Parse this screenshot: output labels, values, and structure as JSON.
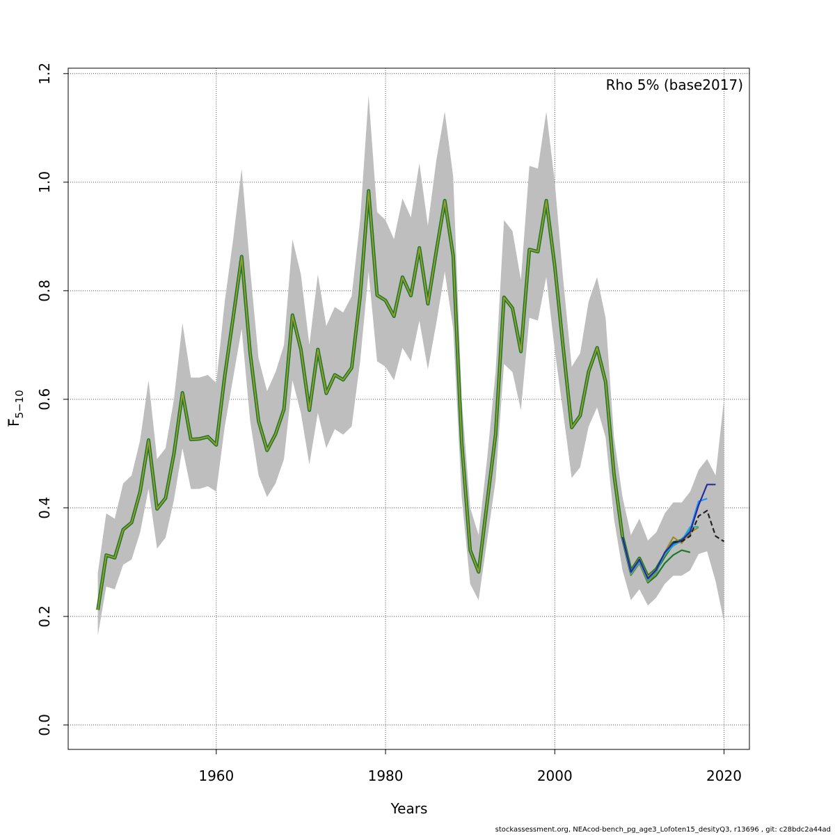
{
  "chart_data": {
    "type": "line",
    "xlabel": "Years",
    "ylabel_main": "F",
    "ylabel_sub": "5−10",
    "annotation": "Rho 5% (base2017)",
    "xlim": [
      1942.5,
      2023
    ],
    "ylim": [
      -0.045,
      1.21
    ],
    "x_ticks": [
      1960,
      1980,
      2000,
      2020
    ],
    "y_ticks": [
      0.0,
      0.2,
      0.4,
      0.6,
      0.8,
      1.0,
      1.2
    ],
    "x_tick_labels": [
      "1960",
      "1980",
      "2000",
      "2020"
    ],
    "y_tick_labels": [
      "0.0",
      "0.2",
      "0.4",
      "0.6",
      "0.8",
      "1.0",
      "1.2"
    ],
    "grid": true,
    "band": {
      "color": "#bebebe",
      "x": [
        1946,
        1947,
        1948,
        1949,
        1950,
        1951,
        1952,
        1953,
        1954,
        1955,
        1956,
        1957,
        1958,
        1959,
        1960,
        1961,
        1962,
        1963,
        1964,
        1965,
        1966,
        1967,
        1968,
        1969,
        1970,
        1971,
        1972,
        1973,
        1974,
        1975,
        1976,
        1977,
        1978,
        1979,
        1980,
        1981,
        1982,
        1983,
        1984,
        1985,
        1986,
        1987,
        1988,
        1989,
        1990,
        1991,
        1992,
        1993,
        1994,
        1995,
        1996,
        1997,
        1998,
        1999,
        2000,
        2001,
        2002,
        2003,
        2004,
        2005,
        2006,
        2007,
        2008,
        2009,
        2010,
        2011,
        2012,
        2013,
        2014,
        2015,
        2016,
        2017,
        2018,
        2019,
        2020
      ],
      "upper": [
        0.28,
        0.39,
        0.38,
        0.445,
        0.46,
        0.525,
        0.635,
        0.49,
        0.51,
        0.6,
        0.74,
        0.64,
        0.64,
        0.645,
        0.63,
        0.78,
        0.895,
        1.025,
        0.84,
        0.675,
        0.615,
        0.65,
        0.7,
        0.895,
        0.83,
        0.7,
        0.83,
        0.735,
        0.77,
        0.76,
        0.79,
        0.93,
        1.16,
        0.945,
        0.93,
        0.895,
        0.97,
        0.935,
        1.035,
        0.92,
        1.04,
        1.13,
        1.01,
        0.6,
        0.4,
        0.35,
        0.49,
        0.65,
        0.93,
        0.91,
        0.82,
        1.03,
        1.025,
        1.13,
        1.0,
        0.82,
        0.66,
        0.685,
        0.78,
        0.825,
        0.75,
        0.53,
        0.42,
        0.35,
        0.38,
        0.34,
        0.355,
        0.39,
        0.41,
        0.41,
        0.43,
        0.47,
        0.49,
        0.46,
        0.6
      ],
      "lower": [
        0.165,
        0.255,
        0.25,
        0.295,
        0.305,
        0.355,
        0.435,
        0.325,
        0.345,
        0.415,
        0.51,
        0.435,
        0.435,
        0.44,
        0.43,
        0.55,
        0.64,
        0.73,
        0.56,
        0.46,
        0.42,
        0.445,
        0.49,
        0.635,
        0.575,
        0.48,
        0.575,
        0.51,
        0.545,
        0.535,
        0.55,
        0.67,
        0.835,
        0.67,
        0.66,
        0.635,
        0.695,
        0.67,
        0.745,
        0.655,
        0.74,
        0.835,
        0.73,
        0.42,
        0.26,
        0.23,
        0.34,
        0.45,
        0.665,
        0.65,
        0.58,
        0.75,
        0.745,
        0.825,
        0.69,
        0.575,
        0.455,
        0.475,
        0.55,
        0.585,
        0.53,
        0.38,
        0.285,
        0.23,
        0.25,
        0.22,
        0.235,
        0.26,
        0.275,
        0.275,
        0.285,
        0.315,
        0.32,
        0.265,
        0.19
      ]
    },
    "base_series": {
      "name": "",
      "color": "#2f2f8f",
      "x": [
        1946,
        1947,
        1948,
        1949,
        1950,
        1951,
        1952,
        1953,
        1954,
        1955,
        1956,
        1957,
        1958,
        1959,
        1960,
        1961,
        1962,
        1963,
        1964,
        1965,
        1966,
        1967,
        1968,
        1969,
        1970,
        1971,
        1972,
        1973,
        1974,
        1975,
        1976,
        1977,
        1978,
        1979,
        1980,
        1981,
        1982,
        1983,
        1984,
        1985,
        1986,
        1987,
        1988,
        1989,
        1990,
        1991,
        1992,
        1993,
        1994,
        1995,
        1996,
        1997,
        1998,
        1999,
        2000,
        2001,
        2002,
        2003,
        2004,
        2005,
        2006,
        2007,
        2008,
        2009,
        2010,
        2011,
        2012,
        2013,
        2014,
        2015,
        2016
      ],
      "values": [
        0.212,
        0.313,
        0.308,
        0.36,
        0.373,
        0.43,
        0.525,
        0.398,
        0.418,
        0.5,
        0.612,
        0.526,
        0.527,
        0.531,
        0.516,
        0.643,
        0.751,
        0.863,
        0.685,
        0.56,
        0.506,
        0.536,
        0.582,
        0.755,
        0.692,
        0.58,
        0.692,
        0.611,
        0.645,
        0.636,
        0.658,
        0.79,
        0.984,
        0.792,
        0.782,
        0.753,
        0.825,
        0.791,
        0.879,
        0.776,
        0.873,
        0.966,
        0.864,
        0.52,
        0.322,
        0.282,
        0.409,
        0.535,
        0.788,
        0.768,
        0.688,
        0.876,
        0.872,
        0.966,
        0.845,
        0.695,
        0.548,
        0.57,
        0.651,
        0.695,
        0.632,
        0.462,
        0.347,
        0.283,
        0.307,
        0.273,
        0.287,
        0.313,
        0.335,
        0.34,
        0.355
      ]
    },
    "retro_series": [
      {
        "name": "",
        "color": "#1a7a2a",
        "dash": false,
        "x": [
          2008,
          2009,
          2010,
          2011,
          2012,
          2013,
          2014,
          2015,
          2016
        ],
        "values": [
          0.342,
          0.276,
          0.298,
          0.262,
          0.275,
          0.298,
          0.313,
          0.322,
          0.318
        ]
      },
      {
        "name": "",
        "color": "#9a8a2a",
        "dash": false,
        "x": [
          2008,
          2009,
          2010,
          2011,
          2012,
          2013,
          2014,
          2015,
          2016,
          2017
        ],
        "values": [
          0.343,
          0.277,
          0.299,
          0.264,
          0.28,
          0.318,
          0.346,
          0.335,
          0.355,
          0.364
        ]
      },
      {
        "name": "",
        "color": "#20b2aa",
        "dash": false,
        "x": [
          2008,
          2009,
          2010,
          2011,
          2012,
          2013,
          2014,
          2015,
          2016,
          2017
        ],
        "values": [
          0.344,
          0.279,
          0.301,
          0.267,
          0.283,
          0.315,
          0.33,
          0.34,
          0.365,
          0.365
        ]
      },
      {
        "name": "",
        "color": "#1e90ff",
        "dash": false,
        "x": [
          2008,
          2009,
          2010,
          2011,
          2012,
          2013,
          2014,
          2015,
          2016,
          2017,
          2018
        ],
        "values": [
          0.345,
          0.281,
          0.303,
          0.269,
          0.285,
          0.317,
          0.333,
          0.34,
          0.36,
          0.412,
          0.417
        ]
      },
      {
        "name": "",
        "color": "#2a2a9a",
        "dash": false,
        "x": [
          2008,
          2009,
          2010,
          2011,
          2012,
          2013,
          2014,
          2015,
          2016,
          2017,
          2018,
          2019
        ],
        "values": [
          0.346,
          0.282,
          0.305,
          0.27,
          0.286,
          0.318,
          0.335,
          0.34,
          0.356,
          0.405,
          0.443,
          0.443
        ]
      },
      {
        "name": "",
        "color": "#222222",
        "dash": true,
        "x": [
          2014,
          2015,
          2016,
          2017,
          2018,
          2019,
          2020
        ],
        "values": [
          0.337,
          0.338,
          0.348,
          0.385,
          0.395,
          0.348,
          0.338
        ]
      }
    ]
  },
  "footer": "stockassessment.org, NEAcod-bench_pg_age3_Lofoten15_desityQ3, r13696 , git: c28bdc2a44ad"
}
